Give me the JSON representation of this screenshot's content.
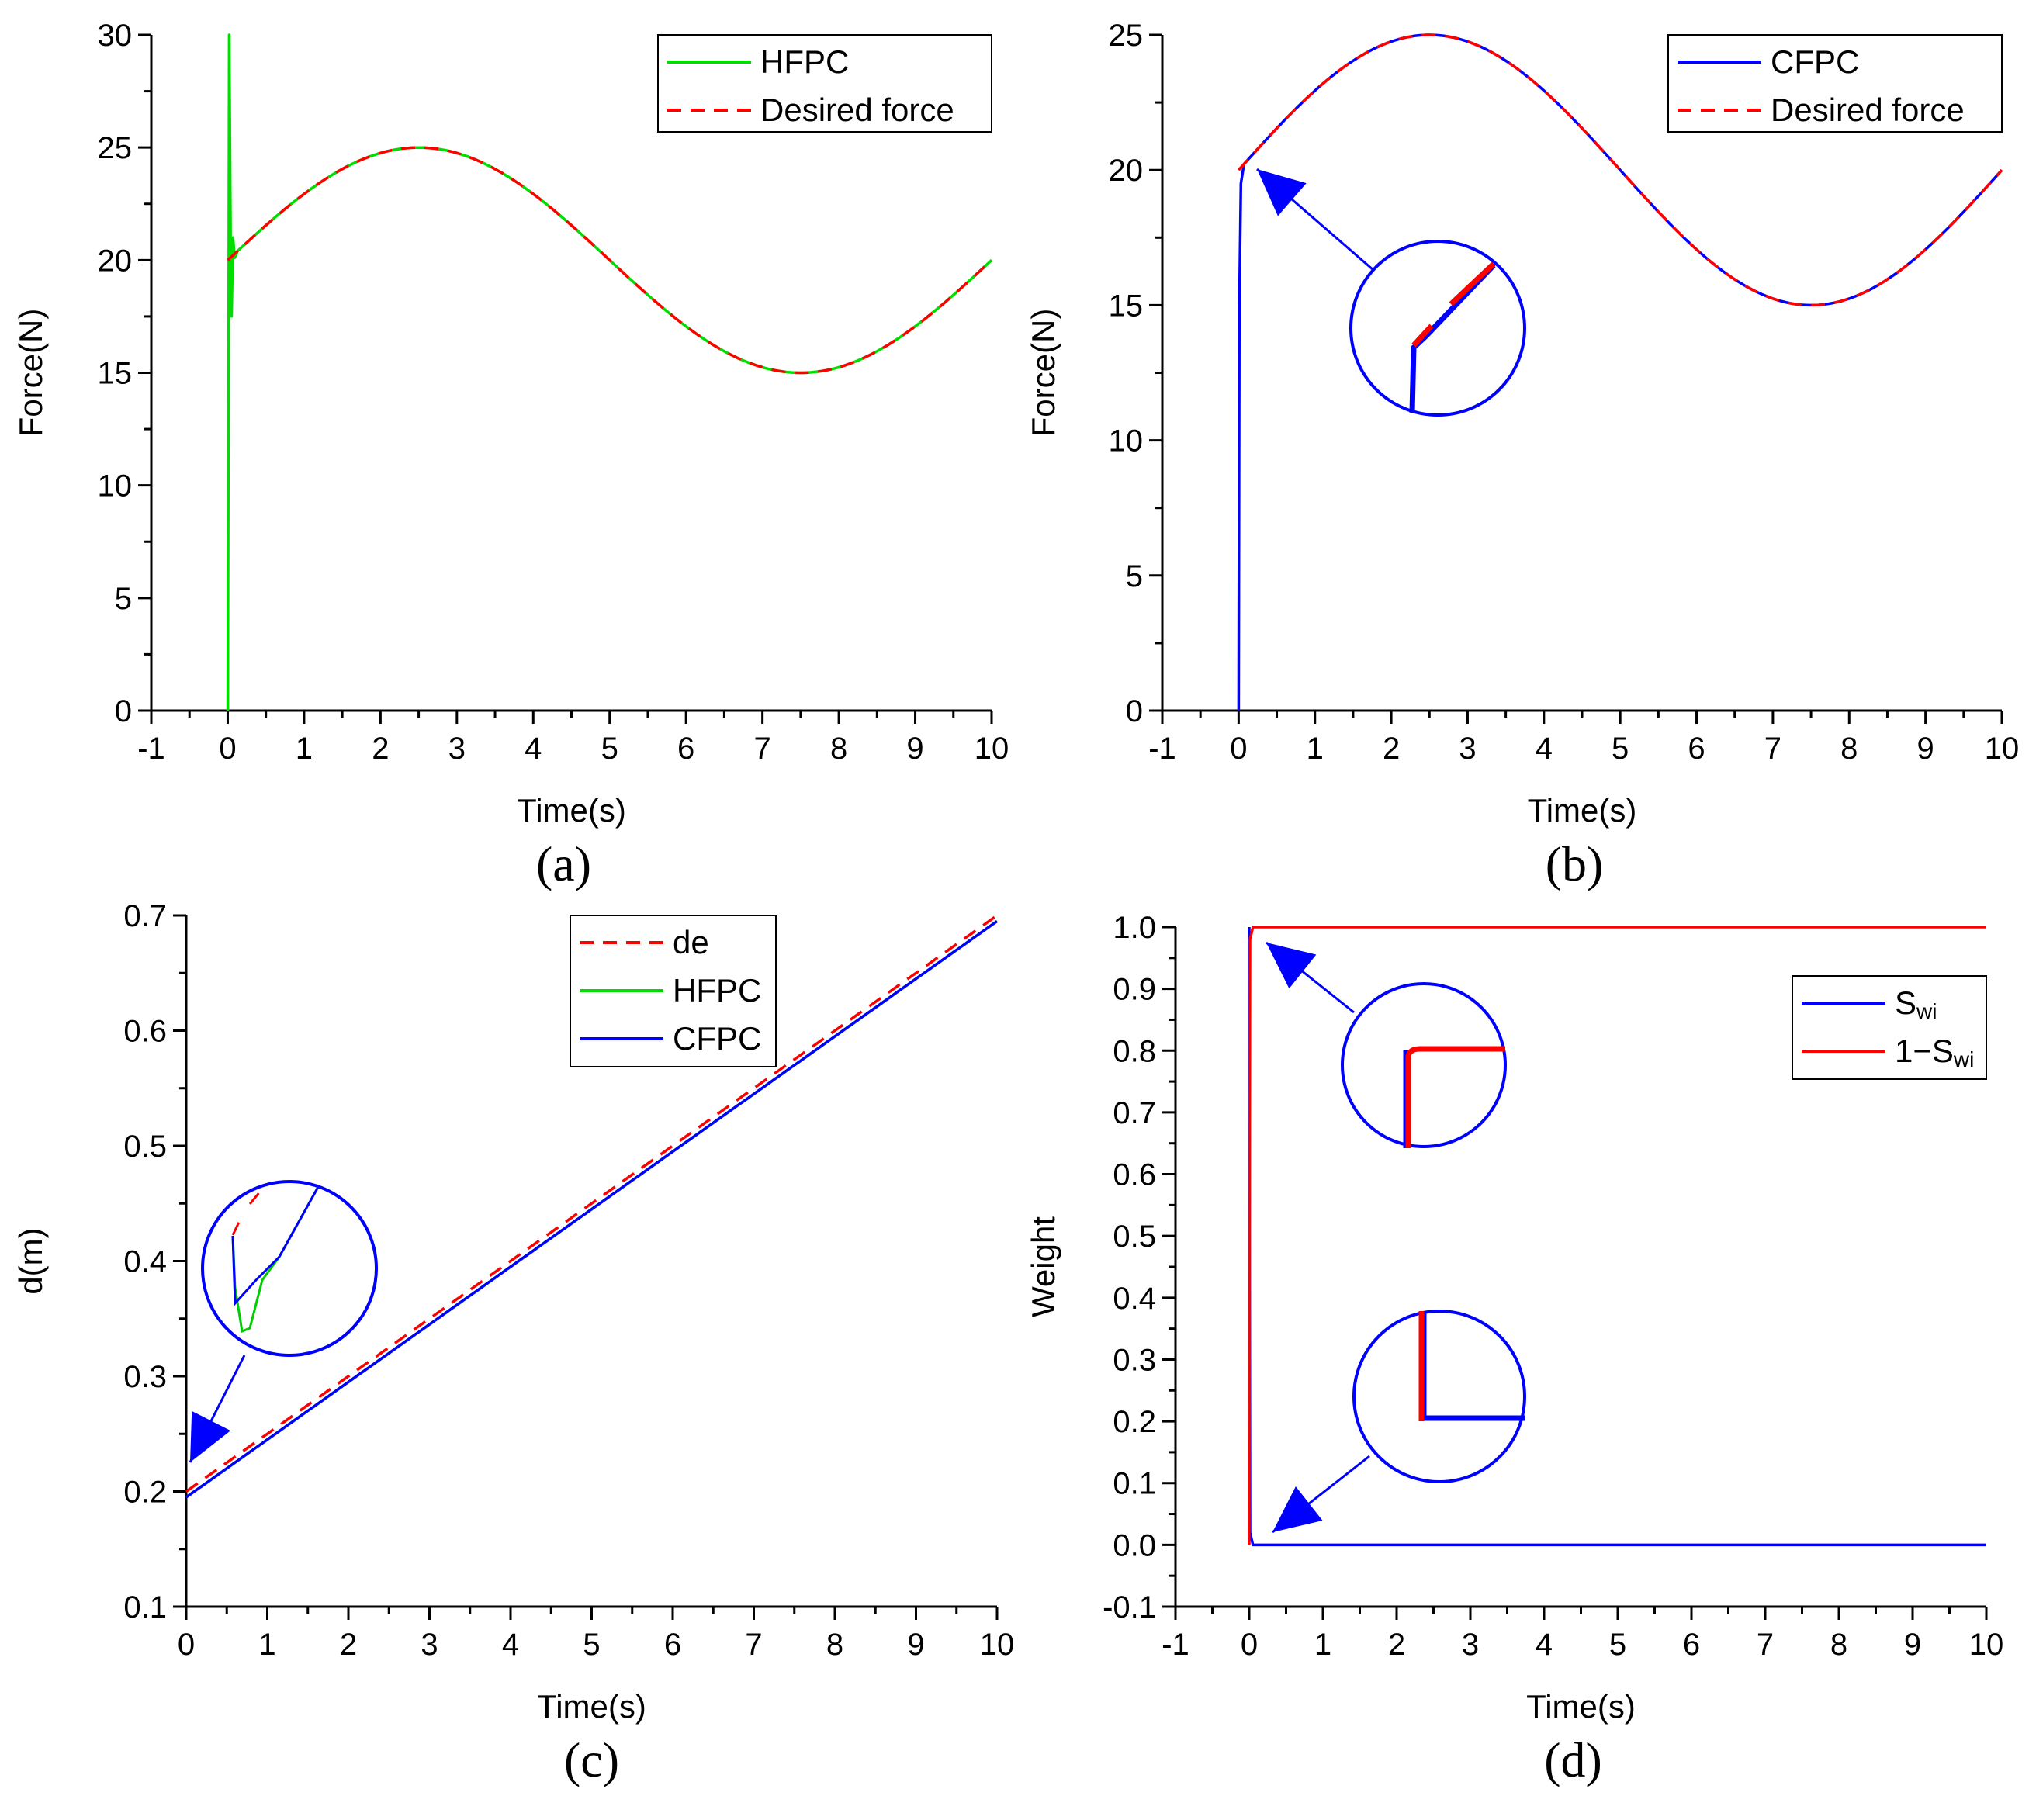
{
  "chart_data": [
    {
      "id": "a",
      "type": "line",
      "caption": "(a)",
      "xlabel": "Time(s)",
      "ylabel": "Force(N)",
      "xlim": [
        -1,
        10
      ],
      "ylim": [
        0,
        30
      ],
      "xticks": [
        "-1",
        "0",
        "1",
        "2",
        "3",
        "4",
        "5",
        "6",
        "7",
        "8",
        "9",
        "10"
      ],
      "yticks": [
        "0",
        "5",
        "10",
        "15",
        "20",
        "25",
        "30"
      ],
      "legend_position": "top-right",
      "series": [
        {
          "name": "HFPC",
          "color": "#00dd00",
          "style": "solid",
          "formula": "20 + 5*sin(2*pi*t/10)",
          "t_range": [
            0,
            10
          ],
          "transient": [
            [
              0,
              0
            ],
            [
              0.01,
              12
            ],
            [
              0.02,
              30
            ],
            [
              0.04,
              20
            ],
            [
              0.05,
              17.5
            ],
            [
              0.07,
              21
            ],
            [
              0.09,
              20.1
            ],
            [
              0.12,
              20.3
            ]
          ]
        },
        {
          "name": "Desired force",
          "color": "#ff0000",
          "style": "dashed",
          "formula": "20 + 5*sin(2*pi*t/10)",
          "t_range": [
            0,
            10
          ]
        }
      ]
    },
    {
      "id": "b",
      "type": "line",
      "caption": "(b)",
      "xlabel": "Time(s)",
      "ylabel": "Force(N)",
      "xlim": [
        -1,
        10
      ],
      "ylim": [
        0,
        25
      ],
      "xticks": [
        "-1",
        "0",
        "1",
        "2",
        "3",
        "4",
        "5",
        "6",
        "7",
        "8",
        "9",
        "10"
      ],
      "yticks": [
        "0",
        "5",
        "10",
        "15",
        "20",
        "25"
      ],
      "legend_position": "top-right",
      "series": [
        {
          "name": "CFPC",
          "color": "#0000ff",
          "style": "solid",
          "formula": "20 + 5*sin(2*pi*t/10)",
          "t_range": [
            0,
            10
          ],
          "transient": [
            [
              0,
              0
            ],
            [
              0.01,
              15
            ],
            [
              0.03,
              19.5
            ],
            [
              0.06,
              20.05
            ]
          ]
        },
        {
          "name": "Desired force",
          "color": "#ff0000",
          "style": "dashed",
          "formula": "20 + 5*sin(2*pi*t/10)",
          "t_range": [
            0,
            10
          ]
        }
      ],
      "inset": "zoom near t=0, F=20"
    },
    {
      "id": "c",
      "type": "line",
      "caption": "(c)",
      "xlabel": "Time(s)",
      "ylabel": "d(m)",
      "xlim": [
        0,
        10
      ],
      "ylim": [
        0.1,
        0.7
      ],
      "xticks": [
        "0",
        "1",
        "2",
        "3",
        "4",
        "5",
        "6",
        "7",
        "8",
        "9",
        "10"
      ],
      "yticks": [
        "0.1",
        "0.2",
        "0.3",
        "0.4",
        "0.5",
        "0.6",
        "0.7"
      ],
      "legend_position": "top-right",
      "series": [
        {
          "name": "de",
          "color": "#ff0000",
          "style": "dashed",
          "formula": "0.2 + 0.05*t",
          "t_range": [
            0,
            10
          ]
        },
        {
          "name": "HFPC",
          "color": "#00dd00",
          "style": "solid",
          "formula": "0.195 + 0.05*t",
          "t_range": [
            0,
            10
          ]
        },
        {
          "name": "CFPC",
          "color": "#0000ff",
          "style": "solid",
          "formula": "0.195 + 0.05*t",
          "t_range": [
            0,
            10
          ]
        }
      ],
      "inset": "zoom near t=0, d=0.2"
    },
    {
      "id": "d",
      "type": "line",
      "caption": "(d)",
      "xlabel": "Time(s)",
      "ylabel": "Weight",
      "xlim": [
        -1,
        10
      ],
      "ylim": [
        -0.1,
        1.0
      ],
      "xticks": [
        "-1",
        "0",
        "1",
        "2",
        "3",
        "4",
        "5",
        "6",
        "7",
        "8",
        "9",
        "10"
      ],
      "yticks": [
        "-0.1",
        "0.0",
        "0.1",
        "0.2",
        "0.3",
        "0.4",
        "0.5",
        "0.6",
        "0.7",
        "0.8",
        "0.9",
        "1.0"
      ],
      "legend_position": "top-right",
      "series": [
        {
          "name": "S",
          "subscript": "wi",
          "color": "#0000ff",
          "style": "solid",
          "points": [
            [
              0,
              1
            ],
            [
              0.01,
              0.02
            ],
            [
              0.05,
              0
            ],
            [
              10,
              0
            ]
          ]
        },
        {
          "name": "1−S",
          "subscript": "wi",
          "color": "#ff0000",
          "style": "solid",
          "points": [
            [
              0,
              0
            ],
            [
              0.01,
              0.98
            ],
            [
              0.05,
              1
            ],
            [
              10,
              1
            ]
          ]
        }
      ],
      "insets": [
        "zoom near t=0, weight=1",
        "zoom near t=0, weight=0"
      ]
    }
  ]
}
